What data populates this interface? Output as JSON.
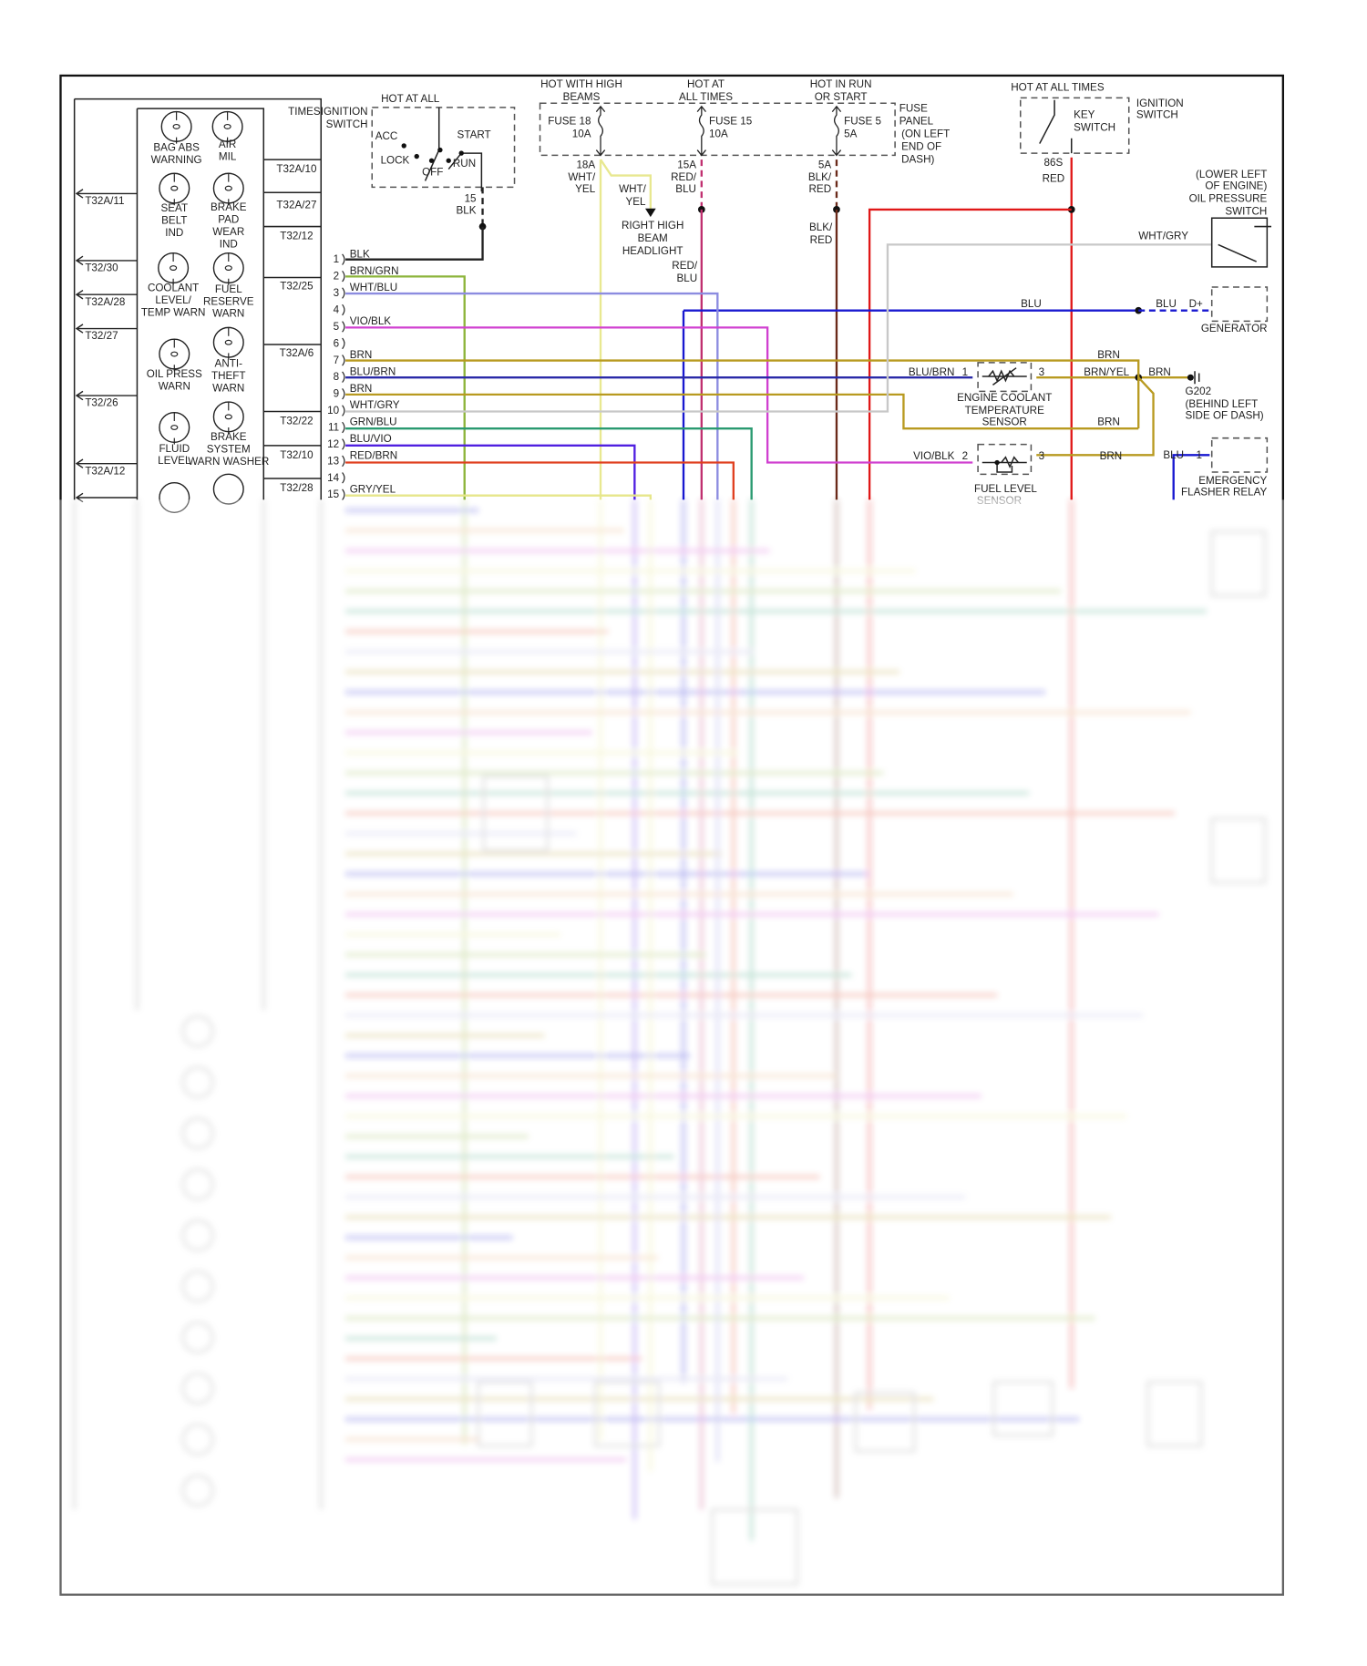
{
  "cluster": {
    "header": "TIMES",
    "connectors_left": [
      "T32A/11",
      "T32/30",
      "T32A/28",
      "T32/27",
      "T32/26",
      "T32A/12"
    ],
    "connectors_right": [
      "T32A/10",
      "T32A/27",
      "T32/12",
      "T32/25",
      "T32A/6",
      "T32/22",
      "T32/10",
      "T32/28"
    ],
    "lamps": [
      [
        "BAG ABS",
        "WARNING"
      ],
      [
        "AIR",
        "MIL"
      ],
      [
        "SEAT",
        "BELT",
        "IND"
      ],
      [
        "BRAKE",
        "PAD",
        "WEAR",
        "IND"
      ],
      [
        "COOLANT",
        "LEVEL/",
        "TEMP WARN"
      ],
      [
        "FUEL",
        "RESERVE",
        "WARN"
      ],
      [
        "OIL PRESS",
        "WARN"
      ],
      [
        "ANTI-",
        "THEFT",
        "WARN"
      ],
      [
        "FLUID",
        "LEVEL"
      ],
      [
        "BRAKE",
        "SYSTEM",
        "WARN WASHER"
      ]
    ]
  },
  "ignition_switch": {
    "hot_label": "HOT AT ALL",
    "name": [
      "IGNITION",
      "SWITCH"
    ],
    "positions": {
      "acc": "ACC",
      "lock": "LOCK",
      "off": "OFF",
      "run": "RUN",
      "start": "START"
    },
    "output": [
      "15",
      "BLK"
    ]
  },
  "fuse_panel": {
    "label": [
      "FUSE",
      "PANEL",
      "(ON LEFT",
      "END OF",
      "DASH)"
    ],
    "fuses": [
      {
        "header": [
          "HOT WITH HIGH",
          "BEAMS"
        ],
        "name": [
          "FUSE 18",
          "10A"
        ],
        "output": [
          "18A",
          "WHT/",
          "YEL"
        ]
      },
      {
        "header": [
          "HOT AT",
          "ALL TIMES"
        ],
        "name": [
          "FUSE 15",
          "10A"
        ],
        "output": [
          "15A",
          "RED/",
          "BLU"
        ]
      },
      {
        "header": [
          "HOT IN RUN",
          "OR START"
        ],
        "name": [
          "FUSE 5",
          "5A"
        ],
        "output": [
          "5A",
          "BLK/",
          "RED"
        ]
      }
    ],
    "branch_wire": [
      "WHT/",
      "YEL"
    ],
    "headlight": [
      "RIGHT HIGH",
      "BEAM",
      "HEADLIGHT"
    ],
    "fuse15_wire_repeat": [
      "RED/",
      "BLU"
    ],
    "fuse5_wire_repeat": [
      "BLK/",
      "RED"
    ]
  },
  "key_switch": {
    "hot_label": "HOT AT ALL TIMES",
    "name": [
      "KEY",
      "SWITCH"
    ],
    "switch_label": [
      "IGNITION",
      "SWITCH"
    ],
    "output": [
      "86S",
      "RED"
    ]
  },
  "oil_pressure_switch": {
    "label": [
      "(LOWER LEFT",
      "OF ENGINE)",
      "OIL PRESSURE",
      "SWITCH"
    ],
    "wire": "WHT/GRY"
  },
  "generator": {
    "label": "GENERATOR",
    "wire": "BLU",
    "wire2": "BLU",
    "pin": "D+"
  },
  "coolant_sensor": {
    "label": [
      "ENGINE COOLANT",
      "TEMPERATURE",
      "SENSOR"
    ],
    "in_wire": "BLU/BRN",
    "pin_in": "1",
    "pin_out": "3",
    "out_wire": "BRN/YEL",
    "brn_top": "BRN",
    "brn_bottom": "BRN"
  },
  "ground": {
    "wire": "BRN",
    "label": [
      "G202",
      "(BEHIND LEFT",
      "SIDE OF DASH)"
    ]
  },
  "fuel_sensor": {
    "label": [
      "FUEL LEVEL",
      "SENSOR"
    ],
    "in_wire": "VIO/BLK",
    "pin_in": "2",
    "pin_out": "3",
    "out_wire": "BRN"
  },
  "flasher_relay": {
    "label": [
      "EMERGENCY",
      "FLASHER RELAY"
    ],
    "wire": "BLU",
    "pin": "1"
  },
  "wires": [
    {
      "num": "1",
      "label": "BLK",
      "color": "#222222"
    },
    {
      "num": "2",
      "label": "BRN/GRN",
      "color": "#8cb43a"
    },
    {
      "num": "3",
      "label": "WHT/BLU",
      "color": "#8c8ce0"
    },
    {
      "num": "4",
      "label": "",
      "color": ""
    },
    {
      "num": "5",
      "label": "VIO/BLK",
      "color": "#d040d0"
    },
    {
      "num": "6",
      "label": "",
      "color": ""
    },
    {
      "num": "7",
      "label": "BRN",
      "color": "#b89a20"
    },
    {
      "num": "8",
      "label": "BLU/BRN",
      "color": "#2a2aa8"
    },
    {
      "num": "9",
      "label": "BRN",
      "color": "#b89a20"
    },
    {
      "num": "10",
      "label": "WHT/GRY",
      "color": "#c8c8c8"
    },
    {
      "num": "11",
      "label": "GRN/BLU",
      "color": "#2a9a70"
    },
    {
      "num": "12",
      "label": "BLU/VIO",
      "color": "#5020e0"
    },
    {
      "num": "13",
      "label": "RED/BRN",
      "color": "#e04020"
    },
    {
      "num": "14",
      "label": "",
      "color": ""
    },
    {
      "num": "15",
      "label": "GRY/YEL",
      "color": "#e6e68a"
    }
  ],
  "colors": {
    "red": "#e01818",
    "blue": "#1818d0",
    "red_blu": "#c03070",
    "blk_red": "#6a2a1a",
    "wht_yel": "#e8e890",
    "wht_gry": "#c8c8c8",
    "brn": "#b89a20"
  }
}
